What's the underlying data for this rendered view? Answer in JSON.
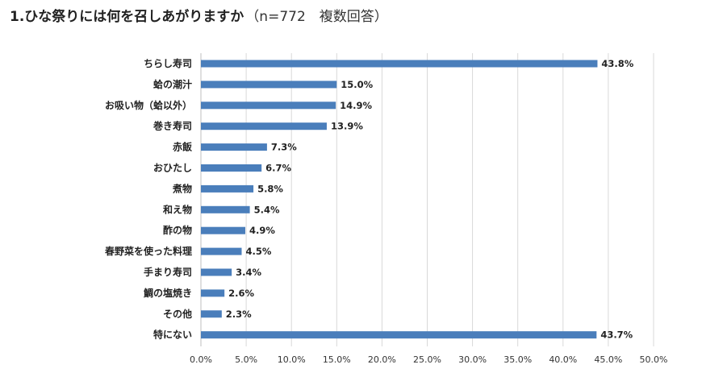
{
  "title": "1.ひな祭りには何を召しあがりますか",
  "subtitle": "（n=772　複数回答）",
  "colors": {
    "bar": "#4a7ebb",
    "grid": "#d9d9d9",
    "axis": "#bfbfbf"
  },
  "chart_data": {
    "type": "bar",
    "orientation": "horizontal",
    "categories": [
      "ちらし寿司",
      "蛤の潮汁",
      "お吸い物（蛤以外）",
      "巻き寿司",
      "赤飯",
      "おひたし",
      "煮物",
      "和え物",
      "酢の物",
      "春野菜を使った料理",
      "手まり寿司",
      "鯛の塩焼き",
      "その他",
      "特にない"
    ],
    "values": [
      43.8,
      15.0,
      14.9,
      13.9,
      7.3,
      6.7,
      5.8,
      5.4,
      4.9,
      4.5,
      3.4,
      2.6,
      2.3,
      43.7
    ],
    "value_labels": [
      "43.8%",
      "15.0%",
      "14.9%",
      "13.9%",
      "7.3%",
      "6.7%",
      "5.8%",
      "5.4%",
      "4.9%",
      "4.5%",
      "3.4%",
      "2.6%",
      "2.3%",
      "43.7%"
    ],
    "xlim": [
      0,
      50
    ],
    "x_ticks": [
      0,
      5,
      10,
      15,
      20,
      25,
      30,
      35,
      40,
      45,
      50
    ],
    "x_tick_labels": [
      "0.0%",
      "5.0%",
      "10.0%",
      "15.0%",
      "20.0%",
      "25.0%",
      "30.0%",
      "35.0%",
      "40.0%",
      "45.0%",
      "50.0%"
    ],
    "grid": true,
    "legend": "none"
  }
}
